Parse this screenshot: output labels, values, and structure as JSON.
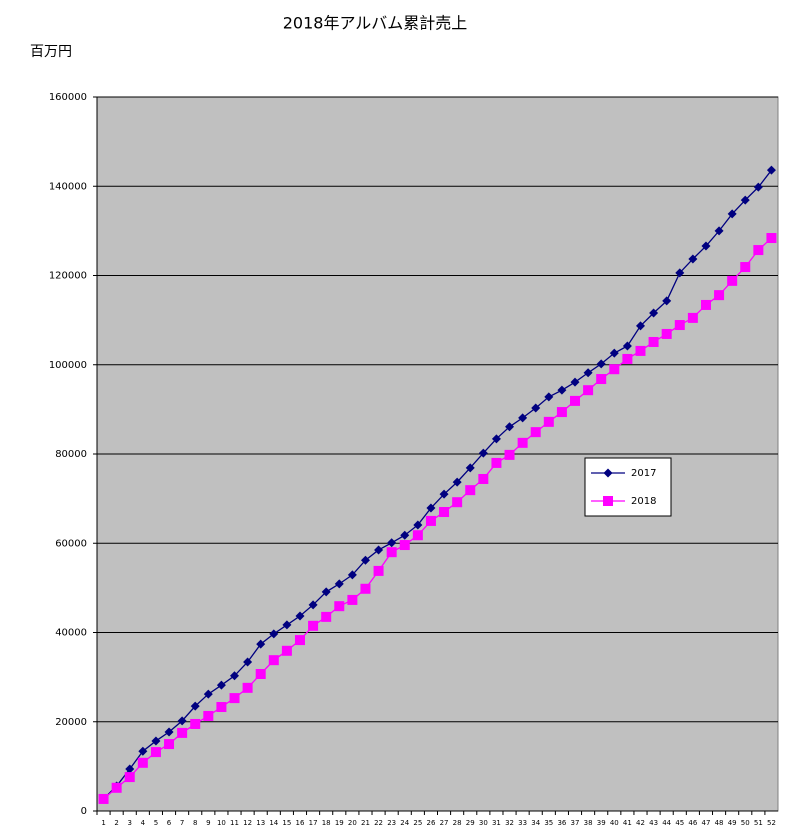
{
  "chart_data": {
    "type": "line",
    "title": "2018年アルバム累計売上",
    "y_label": "百万円",
    "categories": [
      "1",
      "2",
      "3",
      "4",
      "5",
      "6",
      "7",
      "8",
      "9",
      "10",
      "11",
      "12",
      "13",
      "14",
      "15",
      "16",
      "17",
      "18",
      "19",
      "20",
      "21",
      "22",
      "23",
      "24",
      "25",
      "26",
      "27",
      "28",
      "29",
      "30",
      "31",
      "32",
      "33",
      "34",
      "35",
      "36",
      "37",
      "38",
      "39",
      "40",
      "41",
      "42",
      "43",
      "44",
      "45",
      "46",
      "47",
      "48",
      "49",
      "50",
      "51",
      "52"
    ],
    "series": [
      {
        "name": "2017",
        "color": "#000080",
        "marker": "diamond",
        "values": [
          2700,
          5600,
          9400,
          13400,
          15700,
          17700,
          20200,
          23500,
          26200,
          28200,
          30300,
          33400,
          37400,
          39700,
          41700,
          43700,
          46200,
          49100,
          50900,
          52900,
          56200,
          58500,
          60100,
          61800,
          64100,
          67900,
          71000,
          73700,
          76900,
          80200,
          83400,
          86100,
          88100,
          90300,
          92800,
          94300,
          96100,
          98200,
          100200,
          102600,
          104200,
          108700,
          111600,
          114300,
          120600,
          123700,
          126600,
          130000,
          133800,
          136900,
          139800,
          143600
        ]
      },
      {
        "name": "2018",
        "color": "#ff00ff",
        "marker": "square",
        "values": [
          2700,
          5200,
          7600,
          10800,
          13200,
          15000,
          17500,
          19500,
          21300,
          23300,
          25300,
          27600,
          30700,
          33800,
          35900,
          38300,
          41500,
          43500,
          45900,
          47300,
          49800,
          53800,
          58000,
          59600,
          61800,
          65000,
          67000,
          69200,
          71900,
          74400,
          78000,
          79800,
          82500,
          84900,
          87200,
          89400,
          91900,
          94300,
          96800,
          99000,
          101300,
          103100,
          105100,
          106900,
          108900,
          110500,
          113400,
          115600,
          118800,
          121900,
          125700,
          128400
        ]
      }
    ],
    "ylim": [
      0,
      160000
    ],
    "yticks": [
      0,
      20000,
      40000,
      60000,
      80000,
      100000,
      120000,
      140000,
      160000
    ],
    "grid": true,
    "plot_background": "#c0c0c0"
  }
}
